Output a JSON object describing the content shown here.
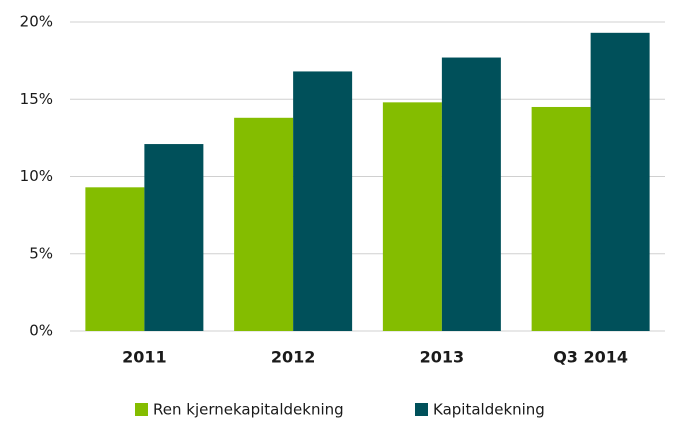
{
  "chart_data": {
    "type": "bar",
    "categories": [
      "2011",
      "2012",
      "2013",
      "Q3 2014"
    ],
    "series": [
      {
        "name": "Ren kjernekapitaldekning",
        "color": "#84bd00",
        "values": [
          9.3,
          13.8,
          14.8,
          14.5
        ]
      },
      {
        "name": "Kapitaldekning",
        "color": "#00505a",
        "values": [
          12.1,
          16.8,
          17.7,
          19.3
        ]
      }
    ],
    "ylim": [
      0,
      20
    ],
    "yticks": [
      {
        "value": 0,
        "label": "0%"
      },
      {
        "value": 5,
        "label": "5%"
      },
      {
        "value": 10,
        "label": "10%"
      },
      {
        "value": 15,
        "label": "15%"
      },
      {
        "value": 20,
        "label": "20%"
      }
    ],
    "grid": true,
    "legend": "bottom"
  }
}
